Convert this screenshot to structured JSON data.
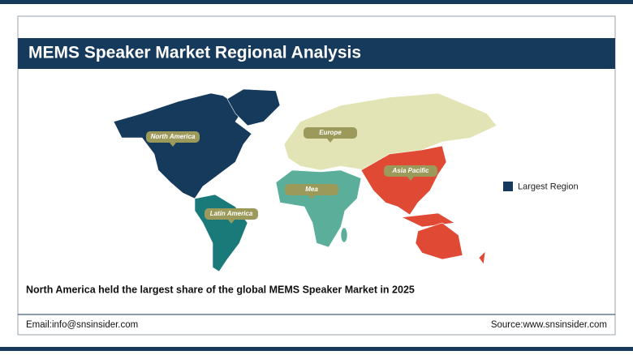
{
  "header": {
    "title": "MEMS Speaker Market Regional Analysis"
  },
  "regions": {
    "north_america": "North America",
    "europe": "Europe",
    "asia_pacific": "Asia Pacific",
    "mea": "Mea",
    "latin_america": "Latin America"
  },
  "legend": {
    "label": "Largest Region"
  },
  "caption": "North America held the largest share of the global MEMS Speaker Market in 2025",
  "footer": {
    "email": "Email:info@snsinsider.com",
    "source": "Source:www.snsinsider.com"
  }
}
